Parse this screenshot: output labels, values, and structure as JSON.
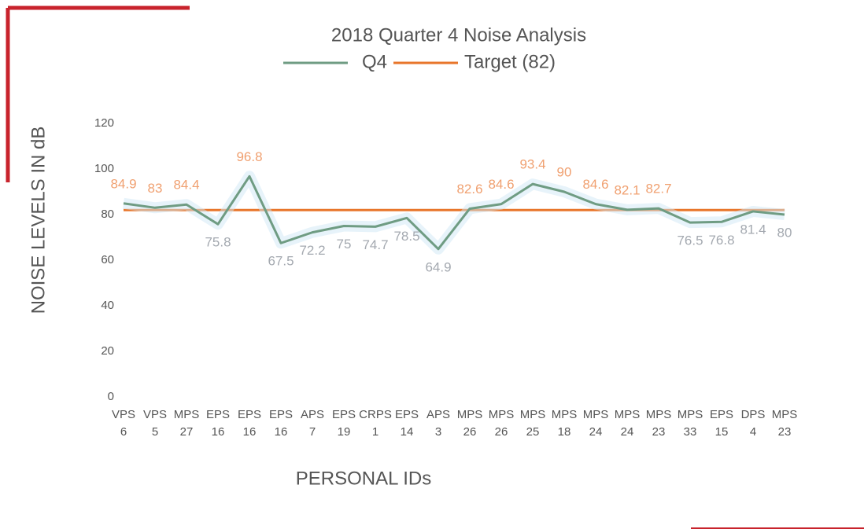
{
  "chart_data": {
    "type": "line",
    "title": "2018 Quarter 4 Noise Analysis",
    "x_label": "PERSONAL IDs",
    "y_label": "NOISE LEVELS IN dB",
    "categories": [
      [
        "VPS",
        "6"
      ],
      [
        "VPS",
        "5"
      ],
      [
        "MPS",
        "27"
      ],
      [
        "EPS",
        "16"
      ],
      [
        "EPS",
        "16"
      ],
      [
        "EPS",
        "16"
      ],
      [
        "APS",
        "7"
      ],
      [
        "EPS",
        "19"
      ],
      [
        "CRPS",
        "1"
      ],
      [
        "EPS",
        "14"
      ],
      [
        "APS",
        "3"
      ],
      [
        "MPS",
        "26"
      ],
      [
        "MPS",
        "26"
      ],
      [
        "MPS",
        "25"
      ],
      [
        "MPS",
        "18"
      ],
      [
        "MPS",
        "24"
      ],
      [
        "MPS",
        "24"
      ],
      [
        "MPS",
        "23"
      ],
      [
        "MPS",
        "33"
      ],
      [
        "EPS",
        "15"
      ],
      [
        "DPS",
        "4"
      ],
      [
        "MPS",
        "23"
      ]
    ],
    "series": [
      {
        "name": "Q4",
        "color": "#6f9c83",
        "values": [
          84.9,
          83,
          84.4,
          75.8,
          96.8,
          67.5,
          72.2,
          75,
          74.7,
          78.5,
          64.9,
          82.6,
          84.6,
          93.4,
          90,
          84.6,
          82.1,
          82.7,
          76.5,
          76.8,
          81.4,
          80
        ]
      }
    ],
    "target": {
      "name": "Target (82)",
      "color": "#e8762b",
      "value": 82
    },
    "label_colors": {
      "above": "#f0a070",
      "below": "#a4a9b0"
    },
    "ylim": [
      0,
      120
    ],
    "yticks": [
      0,
      20,
      40,
      60,
      80,
      100,
      120
    ]
  }
}
